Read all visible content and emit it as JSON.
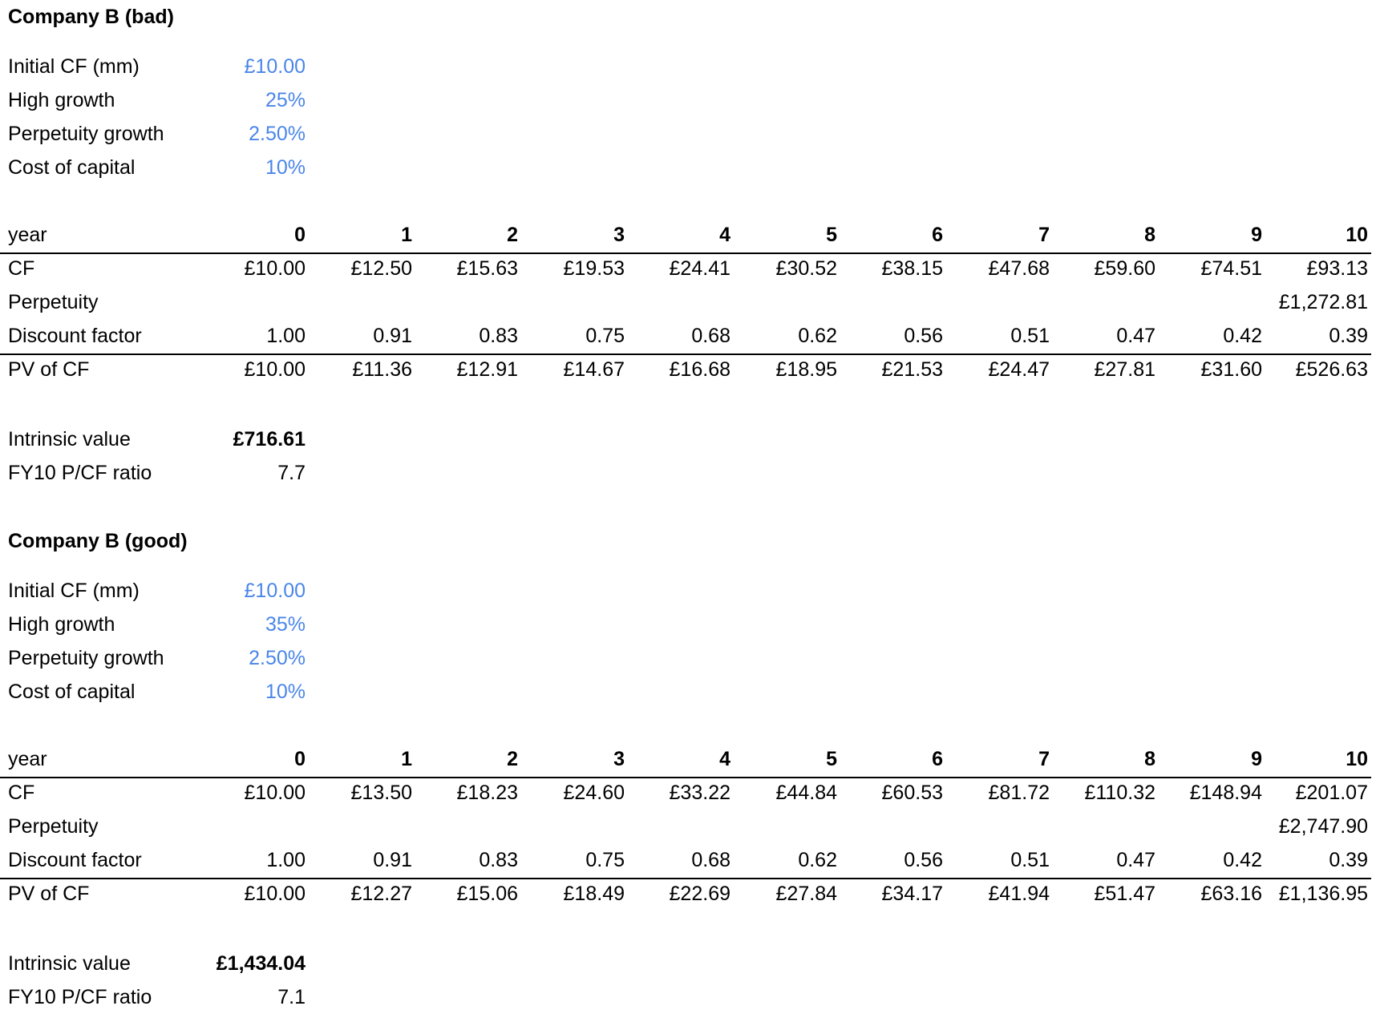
{
  "models": [
    {
      "title": "Company B (bad)",
      "inputs": [
        {
          "label": "Initial CF (mm)",
          "value": "£10.00"
        },
        {
          "label": "High growth",
          "value": "25%"
        },
        {
          "label": "Perpetuity growth",
          "value": "2.50%"
        },
        {
          "label": "Cost of capital",
          "value": "10%"
        }
      ],
      "table": {
        "header": {
          "label": "year",
          "cells": [
            "0",
            "1",
            "2",
            "3",
            "4",
            "5",
            "6",
            "7",
            "8",
            "9",
            "10"
          ]
        },
        "cf": {
          "label": "CF",
          "cells": [
            "£10.00",
            "£12.50",
            "£15.63",
            "£19.53",
            "£24.41",
            "£30.52",
            "£38.15",
            "£47.68",
            "£59.60",
            "£74.51",
            "£93.13"
          ]
        },
        "perpetuity": {
          "label": "Perpetuity",
          "value": "£1,272.81"
        },
        "discount": {
          "label": "Discount factor",
          "cells": [
            "1.00",
            "0.91",
            "0.83",
            "0.75",
            "0.68",
            "0.62",
            "0.56",
            "0.51",
            "0.47",
            "0.42",
            "0.39"
          ]
        },
        "pv": {
          "label": "PV of CF",
          "cells": [
            "£10.00",
            "£11.36",
            "£12.91",
            "£14.67",
            "£16.68",
            "£18.95",
            "£21.53",
            "£24.47",
            "£27.81",
            "£31.60",
            "£526.63"
          ]
        }
      },
      "results": {
        "intrinsic": {
          "label": "Intrinsic value",
          "value": "£716.61"
        },
        "ratio": {
          "label": "FY10 P/CF ratio",
          "value": "7.7"
        }
      }
    },
    {
      "title": "Company B (good)",
      "inputs": [
        {
          "label": "Initial CF (mm)",
          "value": "£10.00"
        },
        {
          "label": "High growth",
          "value": "35%"
        },
        {
          "label": "Perpetuity growth",
          "value": "2.50%"
        },
        {
          "label": "Cost of capital",
          "value": "10%"
        }
      ],
      "table": {
        "header": {
          "label": "year",
          "cells": [
            "0",
            "1",
            "2",
            "3",
            "4",
            "5",
            "6",
            "7",
            "8",
            "9",
            "10"
          ]
        },
        "cf": {
          "label": "CF",
          "cells": [
            "£10.00",
            "£13.50",
            "£18.23",
            "£24.60",
            "£33.22",
            "£44.84",
            "£60.53",
            "£81.72",
            "£110.32",
            "£148.94",
            "£201.07"
          ]
        },
        "perpetuity": {
          "label": "Perpetuity",
          "value": "£2,747.90"
        },
        "discount": {
          "label": "Discount factor",
          "cells": [
            "1.00",
            "0.91",
            "0.83",
            "0.75",
            "0.68",
            "0.62",
            "0.56",
            "0.51",
            "0.47",
            "0.42",
            "0.39"
          ]
        },
        "pv": {
          "label": "PV of CF",
          "cells": [
            "£10.00",
            "£12.27",
            "£15.06",
            "£18.49",
            "£22.69",
            "£27.84",
            "£34.17",
            "£41.94",
            "£51.47",
            "£63.16",
            "£1,136.95"
          ]
        }
      },
      "results": {
        "intrinsic": {
          "label": "Intrinsic value",
          "value": "£1,434.04"
        },
        "ratio": {
          "label": "FY10 P/CF ratio",
          "value": "7.1"
        }
      }
    }
  ],
  "colors": {
    "input": "#4a86e8",
    "text": "#000000",
    "rule": "#000000"
  }
}
